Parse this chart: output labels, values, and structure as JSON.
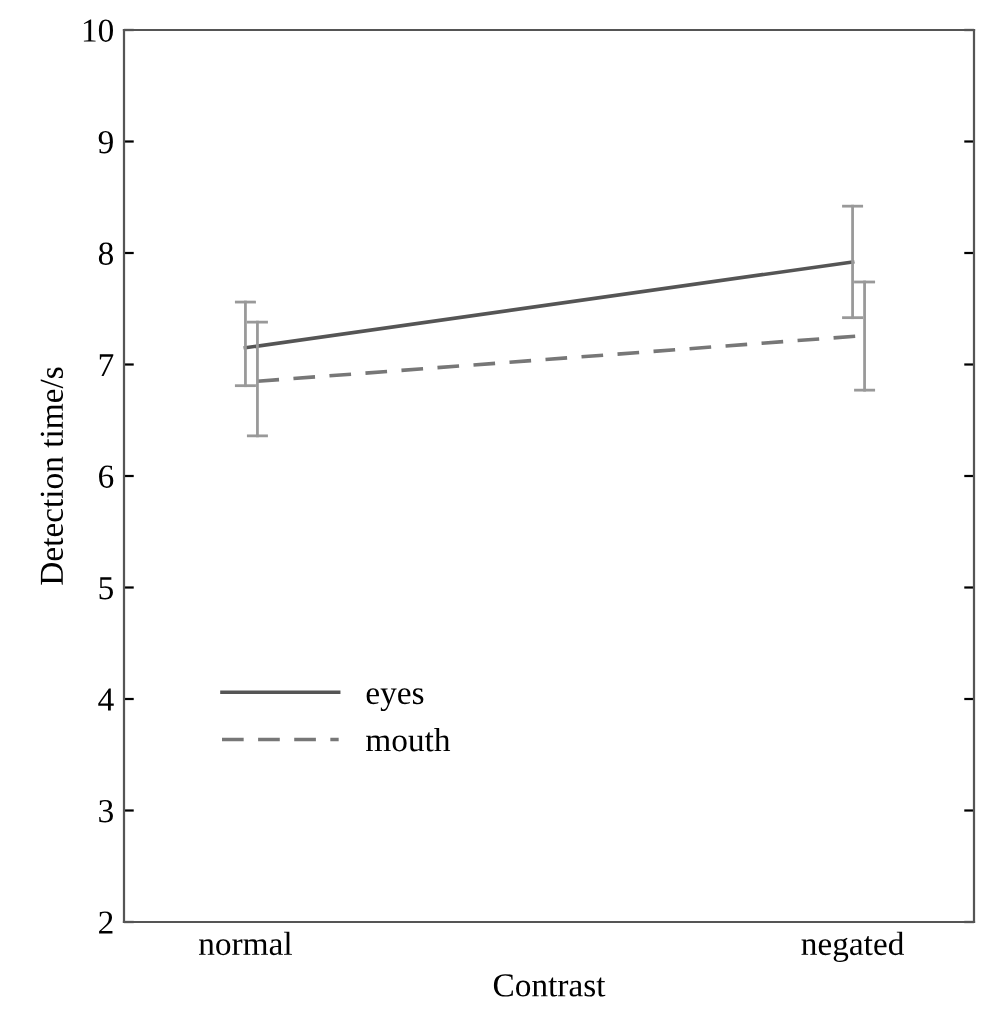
{
  "chart_data": {
    "type": "line",
    "xlabel": "Contrast",
    "ylabel": "Detection time/s",
    "categories": [
      "normal",
      "negated"
    ],
    "series": [
      {
        "name": "eyes",
        "color": "#555555",
        "values": [
          7.15,
          7.92
        ],
        "errors": [
          [
            6.81,
            7.56
          ],
          [
            7.42,
            8.42
          ]
        ],
        "line_style": "solid"
      },
      {
        "name": "mouth",
        "color": "#777777",
        "values": [
          6.85,
          7.26
        ],
        "errors": [
          [
            6.36,
            7.38
          ],
          [
            6.77,
            7.74
          ]
        ],
        "line_style": "dashed"
      }
    ],
    "ylim": [
      2,
      10
    ],
    "yticks": [
      2,
      3,
      4,
      5,
      6,
      7,
      8,
      9,
      10
    ],
    "grid": false,
    "legend": "bottom left",
    "marker": "none"
  }
}
